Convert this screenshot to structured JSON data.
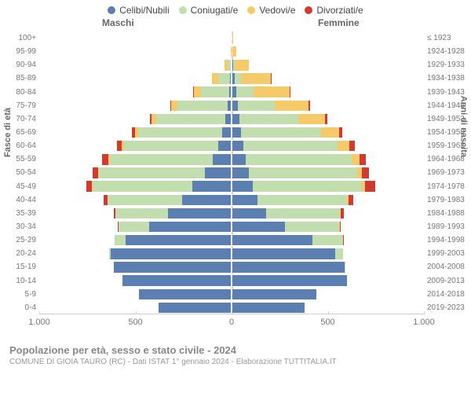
{
  "chart": {
    "type": "population-pyramid",
    "legend": [
      {
        "label": "Celibi/Nubili",
        "color": "#5b7fb1"
      },
      {
        "label": "Coniugati/e",
        "color": "#c3deae"
      },
      {
        "label": "Vedovi/e",
        "color": "#f7ca69"
      },
      {
        "label": "Divorziati/e",
        "color": "#d13b2f"
      }
    ],
    "male_header": "Maschi",
    "female_header": "Femmine",
    "y_title_left": "Fasce di età",
    "y_title_right": "Anni di nascita",
    "x_ticks": [
      "1.000",
      "500",
      "0",
      "500",
      "1.000"
    ],
    "x_tick_positions": [
      0,
      25,
      50,
      75,
      100
    ],
    "x_max": 1000,
    "background_color": "#ffffff",
    "grid_color": "#cccccc",
    "bar_border_color": "rgba(255,255,255,0.4)",
    "label_fontsize": 10,
    "label_color": "#777777",
    "rows": [
      {
        "age": "100+",
        "birth": "≤ 1923",
        "m": {
          "s": 0,
          "m": 0,
          "w": 0,
          "d": 0
        },
        "f": {
          "s": 0,
          "m": 0,
          "w": 2,
          "d": 0
        }
      },
      {
        "age": "95-99",
        "birth": "1924-1928",
        "m": {
          "s": 0,
          "m": 0,
          "w": 2,
          "d": 0
        },
        "f": {
          "s": 0,
          "m": 0,
          "w": 22,
          "d": 0
        }
      },
      {
        "age": "90-94",
        "birth": "1929-1933",
        "m": {
          "s": 0,
          "m": 15,
          "w": 20,
          "d": 0
        },
        "f": {
          "s": 3,
          "m": 8,
          "w": 75,
          "d": 0
        }
      },
      {
        "age": "85-89",
        "birth": "1934-1938",
        "m": {
          "s": 4,
          "m": 60,
          "w": 35,
          "d": 0
        },
        "f": {
          "s": 12,
          "m": 35,
          "w": 155,
          "d": 2
        }
      },
      {
        "age": "80-84",
        "birth": "1939-1943",
        "m": {
          "s": 10,
          "m": 145,
          "w": 40,
          "d": 2
        },
        "f": {
          "s": 20,
          "m": 90,
          "w": 190,
          "d": 4
        }
      },
      {
        "age": "75-79",
        "birth": "1944-1948",
        "m": {
          "s": 18,
          "m": 260,
          "w": 35,
          "d": 5
        },
        "f": {
          "s": 28,
          "m": 195,
          "w": 175,
          "d": 8
        }
      },
      {
        "age": "70-74",
        "birth": "1949-1953",
        "m": {
          "s": 30,
          "m": 360,
          "w": 25,
          "d": 10
        },
        "f": {
          "s": 35,
          "m": 310,
          "w": 140,
          "d": 12
        }
      },
      {
        "age": "65-69",
        "birth": "1954-1958",
        "m": {
          "s": 45,
          "m": 440,
          "w": 18,
          "d": 15
        },
        "f": {
          "s": 45,
          "m": 420,
          "w": 95,
          "d": 18
        }
      },
      {
        "age": "60-64",
        "birth": "1959-1963",
        "m": {
          "s": 65,
          "m": 495,
          "w": 12,
          "d": 25
        },
        "f": {
          "s": 58,
          "m": 495,
          "w": 60,
          "d": 28
        }
      },
      {
        "age": "55-59",
        "birth": "1964-1968",
        "m": {
          "s": 95,
          "m": 540,
          "w": 8,
          "d": 30
        },
        "f": {
          "s": 70,
          "m": 555,
          "w": 40,
          "d": 35
        }
      },
      {
        "age": "50-54",
        "birth": "1969-1973",
        "m": {
          "s": 135,
          "m": 555,
          "w": 5,
          "d": 30
        },
        "f": {
          "s": 85,
          "m": 570,
          "w": 25,
          "d": 38
        }
      },
      {
        "age": "45-49",
        "birth": "1974-1978",
        "m": {
          "s": 200,
          "m": 525,
          "w": 3,
          "d": 28
        },
        "f": {
          "s": 105,
          "m": 575,
          "w": 15,
          "d": 55
        }
      },
      {
        "age": "40-44",
        "birth": "1979-1983",
        "m": {
          "s": 255,
          "m": 390,
          "w": 2,
          "d": 18
        },
        "f": {
          "s": 130,
          "m": 470,
          "w": 8,
          "d": 25
        }
      },
      {
        "age": "35-39",
        "birth": "1984-1988",
        "m": {
          "s": 330,
          "m": 275,
          "w": 0,
          "d": 10
        },
        "f": {
          "s": 175,
          "m": 390,
          "w": 4,
          "d": 15
        }
      },
      {
        "age": "30-34",
        "birth": "1989-1993",
        "m": {
          "s": 430,
          "m": 160,
          "w": 0,
          "d": 4
        },
        "f": {
          "s": 275,
          "m": 285,
          "w": 2,
          "d": 8
        }
      },
      {
        "age": "25-29",
        "birth": "1994-1998",
        "m": {
          "s": 550,
          "m": 60,
          "w": 0,
          "d": 0
        },
        "f": {
          "s": 420,
          "m": 160,
          "w": 0,
          "d": 2
        }
      },
      {
        "age": "20-24",
        "birth": "1999-2003",
        "m": {
          "s": 630,
          "m": 8,
          "w": 0,
          "d": 0
        },
        "f": {
          "s": 540,
          "m": 40,
          "w": 0,
          "d": 0
        }
      },
      {
        "age": "15-19",
        "birth": "2004-2008",
        "m": {
          "s": 615,
          "m": 0,
          "w": 0,
          "d": 0
        },
        "f": {
          "s": 590,
          "m": 2,
          "w": 0,
          "d": 0
        }
      },
      {
        "age": "10-14",
        "birth": "2009-2013",
        "m": {
          "s": 570,
          "m": 0,
          "w": 0,
          "d": 0
        },
        "f": {
          "s": 600,
          "m": 0,
          "w": 0,
          "d": 0
        }
      },
      {
        "age": "5-9",
        "birth": "2014-2018",
        "m": {
          "s": 480,
          "m": 0,
          "w": 0,
          "d": 0
        },
        "f": {
          "s": 440,
          "m": 0,
          "w": 0,
          "d": 0
        }
      },
      {
        "age": "0-4",
        "birth": "2019-2023",
        "m": {
          "s": 380,
          "m": 0,
          "w": 0,
          "d": 0
        },
        "f": {
          "s": 380,
          "m": 0,
          "w": 0,
          "d": 0
        }
      }
    ]
  },
  "footer": {
    "title": "Popolazione per età, sesso e stato civile - 2024",
    "subtitle": "COMUNE DI GIOIA TAURO (RC) - Dati ISTAT 1° gennaio 2024 - Elaborazione TUTTITALIA.IT"
  }
}
